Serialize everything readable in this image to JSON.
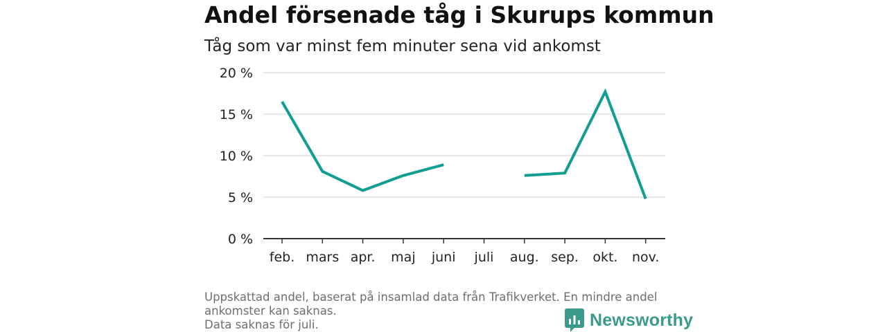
{
  "header": {
    "title": "Andel försenade tåg i Skurups kommun",
    "subtitle": "Tåg som var minst fem minuter sena vid ankomst"
  },
  "chart_data": {
    "type": "line",
    "title": "Andel försenade tåg i Skurups kommun",
    "subtitle": "Tåg som var minst fem minuter sena vid ankomst",
    "xlabel": "",
    "ylabel": "",
    "categories": [
      "feb.",
      "mars",
      "apr.",
      "maj",
      "juni",
      "juli",
      "aug.",
      "sep.",
      "okt.",
      "nov."
    ],
    "series": [
      {
        "values": [
          16.5,
          8.1,
          5.8,
          7.6,
          8.9,
          null,
          7.6,
          7.9,
          17.7,
          4.8
        ]
      }
    ],
    "yticks": [
      "0 %",
      "5 %",
      "10 %",
      "15 %",
      "20 %"
    ],
    "ylim": [
      0,
      20
    ],
    "grid": true,
    "colors": {
      "line": "#0f9e91",
      "grid": "#d9d9d9",
      "axis": "#333333"
    }
  },
  "footnote": {
    "lines": [
      "Uppskattad andel, baserat på insamlad data från Trafikverket. En mindre andel",
      "ankomster kan saknas.",
      "Data saknas för juli."
    ]
  },
  "brand": {
    "name": "Newsworthy",
    "icon": "newsworthy-logo-icon",
    "color": "#3a9a8c"
  }
}
